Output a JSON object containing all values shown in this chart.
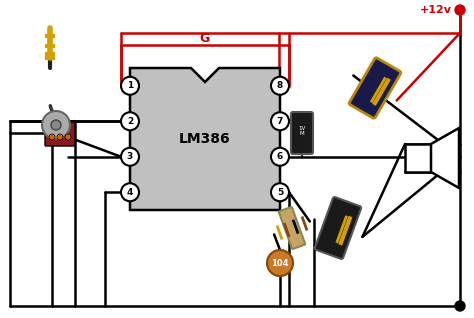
{
  "bg_color": "#ffffff",
  "wire_color": "#000000",
  "red_wire_color": "#cc0000",
  "ic_body_color": "#c0c0c0",
  "ic_label": "LM386",
  "gain_label": "G",
  "voltage_label": "+12v",
  "pin_labels_left": [
    "1",
    "2",
    "3",
    "4"
  ],
  "pin_labels_right": [
    "8",
    "7",
    "6",
    "5"
  ],
  "cap_label": "104",
  "figsize": [
    4.74,
    3.18
  ],
  "dpi": 100
}
